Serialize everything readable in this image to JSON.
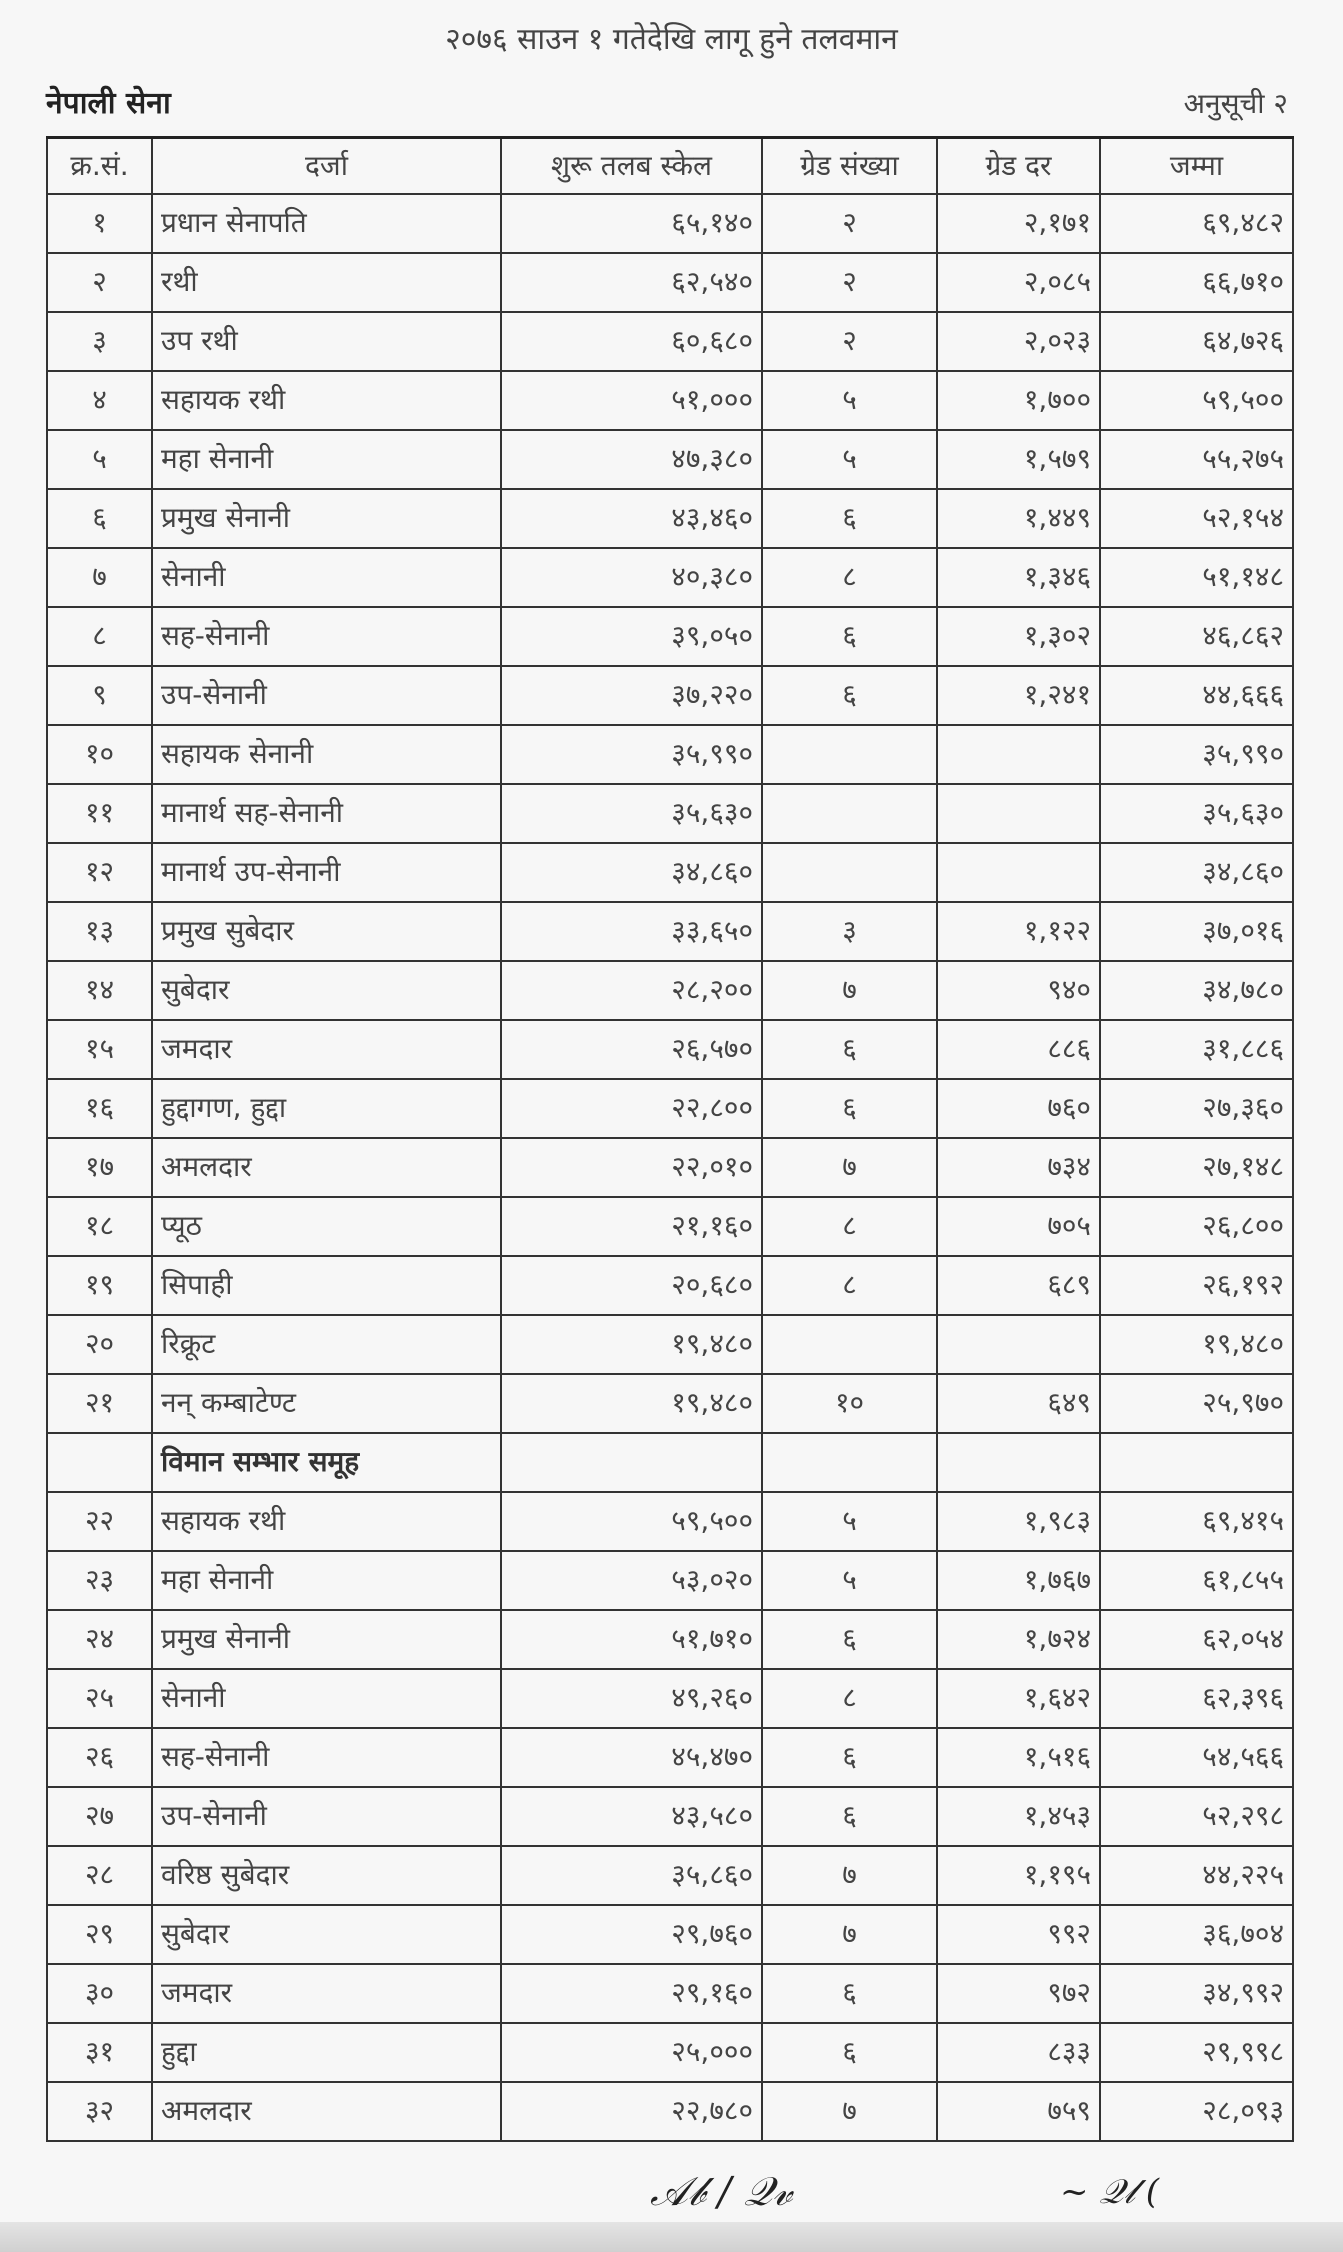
{
  "title": "२०७६ साउन १ गतेदेखि लागू हुने तलवमान",
  "organization": "नेपाली सेना",
  "annex": "अनुसूची २",
  "columns": [
    "क्र.सं.",
    "दर्जा",
    "शुरू तलब स्केल",
    "ग्रेड संख्या",
    "ग्रेड दर",
    "जम्मा"
  ],
  "rows": [
    {
      "sn": "१",
      "rank": "प्रधान सेनापति",
      "scale": "६५,१४०",
      "grades": "२",
      "rate": "२,१७१",
      "total": "६९,४८२"
    },
    {
      "sn": "२",
      "rank": "रथी",
      "scale": "६२,५४०",
      "grades": "२",
      "rate": "२,०८५",
      "total": "६६,७१०"
    },
    {
      "sn": "३",
      "rank": "उप रथी",
      "scale": "६०,६८०",
      "grades": "२",
      "rate": "२,०२३",
      "total": "६४,७२६"
    },
    {
      "sn": "४",
      "rank": "सहायक रथी",
      "scale": "५१,०००",
      "grades": "५",
      "rate": "१,७००",
      "total": "५९,५००"
    },
    {
      "sn": "५",
      "rank": "महा सेनानी",
      "scale": "४७,३८०",
      "grades": "५",
      "rate": "१,५७९",
      "total": "५५,२७५"
    },
    {
      "sn": "६",
      "rank": "प्रमुख सेनानी",
      "scale": "४३,४६०",
      "grades": "६",
      "rate": "१,४४९",
      "total": "५२,१५४"
    },
    {
      "sn": "७",
      "rank": "सेनानी",
      "scale": "४०,३८०",
      "grades": "८",
      "rate": "१,३४६",
      "total": "५१,१४८"
    },
    {
      "sn": "८",
      "rank": "सह-सेनानी",
      "scale": "३९,०५०",
      "grades": "६",
      "rate": "१,३०२",
      "total": "४६,८६२"
    },
    {
      "sn": "९",
      "rank": "उप-सेनानी",
      "scale": "३७,२२०",
      "grades": "६",
      "rate": "१,२४१",
      "total": "४४,६६६"
    },
    {
      "sn": "१०",
      "rank": "सहायक सेनानी",
      "scale": "३५,९९०",
      "grades": "",
      "rate": "",
      "total": "३५,९९०"
    },
    {
      "sn": "११",
      "rank": "मानार्थ सह-सेनानी",
      "scale": "३५,६३०",
      "grades": "",
      "rate": "",
      "total": "३५,६३०"
    },
    {
      "sn": "१२",
      "rank": "मानार्थ उप-सेनानी",
      "scale": "३४,८६०",
      "grades": "",
      "rate": "",
      "total": "३४,८६०"
    },
    {
      "sn": "१३",
      "rank": "प्रमुख सुबेदार",
      "scale": "३३,६५०",
      "grades": "३",
      "rate": "१,१२२",
      "total": "३७,०१६"
    },
    {
      "sn": "१४",
      "rank": "सुबेदार",
      "scale": "२८,२००",
      "grades": "७",
      "rate": "९४०",
      "total": "३४,७८०"
    },
    {
      "sn": "१५",
      "rank": "जमदार",
      "scale": "२६,५७०",
      "grades": "६",
      "rate": "८८६",
      "total": "३१,८८६"
    },
    {
      "sn": "१६",
      "rank": "हुद्दागण, हुद्दा",
      "scale": "२२,८००",
      "grades": "६",
      "rate": "७६०",
      "total": "२७,३६०"
    },
    {
      "sn": "१७",
      "rank": "अमलदार",
      "scale": "२२,०१०",
      "grades": "७",
      "rate": "७३४",
      "total": "२७,१४८"
    },
    {
      "sn": "१८",
      "rank": "प्यूठ",
      "scale": "२१,१६०",
      "grades": "८",
      "rate": "७०५",
      "total": "२६,८००"
    },
    {
      "sn": "१९",
      "rank": "सिपाही",
      "scale": "२०,६८०",
      "grades": "८",
      "rate": "६८९",
      "total": "२६,१९२"
    },
    {
      "sn": "२०",
      "rank": "रिक्रूट",
      "scale": "१९,४८०",
      "grades": "",
      "rate": "",
      "total": "१९,४८०"
    },
    {
      "sn": "२१",
      "rank": "नन् कम्बाटेण्ट",
      "scale": "१९,४८०",
      "grades": "१०",
      "rate": "६४९",
      "total": "२५,९७०"
    },
    {
      "sn": "",
      "rank": "विमान सम्भार समूह",
      "scale": "",
      "grades": "",
      "rate": "",
      "total": "",
      "section": true
    },
    {
      "sn": "२२",
      "rank": "सहायक रथी",
      "scale": "५९,५००",
      "grades": "५",
      "rate": "१,९८३",
      "total": "६९,४१५"
    },
    {
      "sn": "२३",
      "rank": "महा सेनानी",
      "scale": "५३,०२०",
      "grades": "५",
      "rate": "१,७६७",
      "total": "६१,८५५"
    },
    {
      "sn": "२४",
      "rank": "प्रमुख सेनानी",
      "scale": "५१,७१०",
      "grades": "६",
      "rate": "१,७२४",
      "total": "६२,०५४"
    },
    {
      "sn": "२५",
      "rank": "सेनानी",
      "scale": "४९,२६०",
      "grades": "८",
      "rate": "१,६४२",
      "total": "६२,३९६"
    },
    {
      "sn": "२६",
      "rank": "सह-सेनानी",
      "scale": "४५,४७०",
      "grades": "६",
      "rate": "१,५१६",
      "total": "५४,५६६"
    },
    {
      "sn": "२७",
      "rank": "उप-सेनानी",
      "scale": "४३,५८०",
      "grades": "६",
      "rate": "१,४५३",
      "total": "५२,२९८"
    },
    {
      "sn": "२८",
      "rank": "वरिष्ठ सुबेदार",
      "scale": "३५,८६०",
      "grades": "७",
      "rate": "१,१९५",
      "total": "४४,२२५"
    },
    {
      "sn": "२९",
      "rank": "सुबेदार",
      "scale": "२९,७६०",
      "grades": "७",
      "rate": "९९२",
      "total": "३६,७०४"
    },
    {
      "sn": "३०",
      "rank": "जमदार",
      "scale": "२९,१६०",
      "grades": "६",
      "rate": "९७२",
      "total": "३४,९९२"
    },
    {
      "sn": "३१",
      "rank": "हुद्दा",
      "scale": "२५,०००",
      "grades": "६",
      "rate": "८३३",
      "total": "२९,९९८"
    },
    {
      "sn": "३२",
      "rank": "अमलदार",
      "scale": "२२,७८०",
      "grades": "७",
      "rate": "७५९",
      "total": "२८,०९३"
    }
  ]
}
